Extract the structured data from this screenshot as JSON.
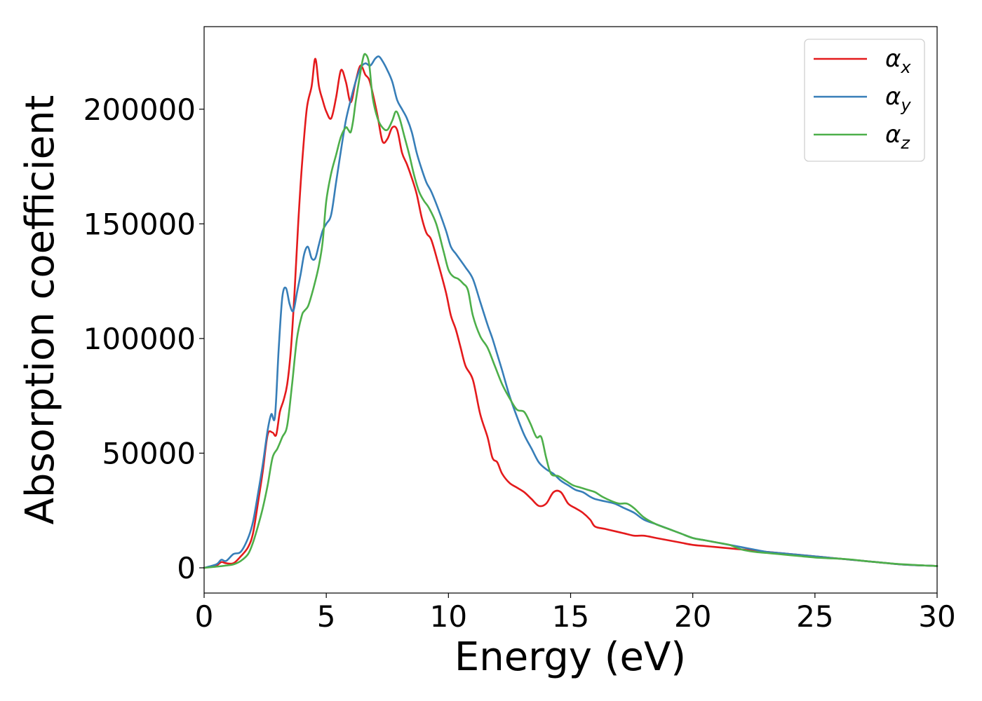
{
  "chart_data": {
    "type": "line",
    "title": "",
    "xlabel": "Energy (eV)",
    "ylabel": "Absorption coefficient",
    "xlim": [
      0,
      30
    ],
    "ylim": [
      -11000,
      236000
    ],
    "xticks": [
      0,
      5,
      10,
      15,
      20,
      25,
      30
    ],
    "yticks": [
      0,
      50000,
      100000,
      150000,
      200000
    ],
    "grid": false,
    "legend_position": "top-right",
    "series": [
      {
        "name": "αx",
        "legend_base": "α",
        "legend_sub": "x",
        "color": "#e41a1c",
        "x": [
          0,
          0.5,
          0.7,
          0.9,
          1.2,
          1.5,
          1.8,
          2.0,
          2.2,
          2.4,
          2.6,
          2.8,
          2.95,
          3.1,
          3.25,
          3.4,
          3.55,
          3.7,
          3.85,
          4.0,
          4.2,
          4.4,
          4.55,
          4.7,
          4.85,
          5.0,
          5.2,
          5.4,
          5.6,
          5.8,
          6.0,
          6.2,
          6.4,
          6.6,
          6.75,
          6.9,
          7.1,
          7.3,
          7.5,
          7.7,
          7.9,
          8.1,
          8.3,
          8.5,
          8.7,
          8.9,
          9.1,
          9.3,
          9.6,
          9.9,
          10.1,
          10.3,
          10.5,
          10.7,
          11.0,
          11.3,
          11.6,
          11.8,
          12.0,
          12.2,
          12.5,
          12.8,
          13.1,
          13.4,
          13.7,
          14.0,
          14.3,
          14.6,
          14.9,
          15.2,
          15.5,
          15.8,
          16.0,
          16.4,
          16.8,
          17.2,
          17.6,
          18.0,
          18.5,
          19.0,
          19.5,
          20.0,
          20.5,
          21.0,
          21.5,
          22.0,
          22.5,
          23.0,
          23.5,
          24.0,
          24.5,
          25.0,
          25.5,
          26.0,
          26.5,
          27.0,
          27.5,
          28.0,
          28.5,
          29.0,
          29.5,
          30.0
        ],
        "y": [
          0,
          1000,
          2500,
          2000,
          2000,
          5000,
          9000,
          15000,
          28000,
          42000,
          58000,
          59000,
          58000,
          68000,
          73000,
          80000,
          95000,
          120000,
          150000,
          175000,
          200000,
          210000,
          222000,
          210000,
          204000,
          199000,
          196000,
          205000,
          217000,
          212000,
          203000,
          212000,
          219000,
          215000,
          213000,
          207000,
          197000,
          186000,
          187000,
          192000,
          191000,
          181000,
          176000,
          170000,
          163000,
          153000,
          146000,
          143000,
          132000,
          120000,
          110000,
          104000,
          96000,
          88000,
          82000,
          67000,
          57000,
          48000,
          46000,
          41000,
          37000,
          35000,
          33000,
          30000,
          27000,
          28000,
          33000,
          33000,
          28000,
          26000,
          24000,
          21000,
          18000,
          17000,
          16000,
          15000,
          14000,
          14000,
          13000,
          12000,
          11000,
          10000,
          9500,
          9000,
          8500,
          8000,
          7500,
          7000,
          6500,
          6000,
          5500,
          5000,
          4500,
          4000,
          3500,
          3000,
          2500,
          2000,
          1500,
          1200,
          1000,
          800
        ]
      },
      {
        "name": "αy",
        "legend_base": "α",
        "legend_sub": "y",
        "color": "#377eb8",
        "x": [
          0,
          0.5,
          0.7,
          0.9,
          1.2,
          1.5,
          1.8,
          2.0,
          2.2,
          2.4,
          2.6,
          2.75,
          2.9,
          3.05,
          3.2,
          3.35,
          3.5,
          3.65,
          3.8,
          3.95,
          4.1,
          4.25,
          4.4,
          4.55,
          4.7,
          4.85,
          5.0,
          5.2,
          5.4,
          5.6,
          5.8,
          6.0,
          6.2,
          6.4,
          6.6,
          6.8,
          7.0,
          7.15,
          7.3,
          7.5,
          7.7,
          7.9,
          8.1,
          8.3,
          8.5,
          8.7,
          8.9,
          9.1,
          9.3,
          9.6,
          9.9,
          10.1,
          10.3,
          10.5,
          10.7,
          11.0,
          11.3,
          11.6,
          11.8,
          12.0,
          12.2,
          12.5,
          12.8,
          13.1,
          13.4,
          13.7,
          14.0,
          14.3,
          14.6,
          14.9,
          15.2,
          15.5,
          15.8,
          16.0,
          16.4,
          16.8,
          17.2,
          17.6,
          18.0,
          18.5,
          19.0,
          19.5,
          20.0,
          20.5,
          21.0,
          21.5,
          22.0,
          22.5,
          23.0,
          23.5,
          24.0,
          24.5,
          25.0,
          25.5,
          26.0,
          26.5,
          27.0,
          27.5,
          28.0,
          28.5,
          29.0,
          29.5,
          30.0
        ],
        "y": [
          0,
          1500,
          3500,
          3000,
          6000,
          7000,
          13000,
          20000,
          32000,
          45000,
          60000,
          67000,
          66000,
          95000,
          118000,
          122000,
          115000,
          112000,
          120000,
          128000,
          137000,
          140000,
          135000,
          135000,
          141000,
          147000,
          150000,
          154000,
          168000,
          182000,
          195000,
          204000,
          212000,
          218000,
          220000,
          219000,
          222000,
          223000,
          221000,
          217000,
          212000,
          204000,
          200000,
          196000,
          190000,
          181000,
          174000,
          168000,
          164000,
          156000,
          147000,
          140000,
          137000,
          134000,
          131000,
          126000,
          116000,
          106000,
          100000,
          93000,
          86000,
          75000,
          66000,
          58000,
          52000,
          46000,
          43000,
          41000,
          38000,
          36000,
          34000,
          33000,
          31000,
          30000,
          29000,
          28000,
          26000,
          24000,
          21000,
          19000,
          17000,
          15000,
          13000,
          12000,
          11000,
          10000,
          9000,
          8000,
          7000,
          6500,
          6000,
          5500,
          5000,
          4500,
          4000,
          3500,
          3000,
          2500,
          2000,
          1500,
          1200,
          1000,
          800
        ]
      },
      {
        "name": "αz",
        "legend_base": "α",
        "legend_sub": "z",
        "color": "#4daf4a",
        "x": [
          0,
          0.5,
          0.9,
          1.2,
          1.5,
          1.8,
          2.0,
          2.2,
          2.4,
          2.6,
          2.8,
          3.0,
          3.2,
          3.4,
          3.6,
          3.8,
          4.0,
          4.1,
          4.25,
          4.4,
          4.55,
          4.7,
          4.85,
          5.0,
          5.2,
          5.4,
          5.6,
          5.8,
          5.9,
          6.0,
          6.1,
          6.2,
          6.35,
          6.5,
          6.6,
          6.75,
          6.9,
          7.1,
          7.3,
          7.5,
          7.7,
          7.85,
          8.0,
          8.2,
          8.4,
          8.6,
          8.8,
          9.0,
          9.2,
          9.5,
          9.8,
          10.0,
          10.2,
          10.4,
          10.6,
          10.8,
          11.0,
          11.3,
          11.6,
          11.9,
          12.2,
          12.5,
          12.8,
          13.1,
          13.35,
          13.6,
          13.8,
          14.0,
          14.2,
          14.5,
          14.8,
          15.1,
          15.4,
          15.7,
          16.0,
          16.3,
          16.7,
          17.0,
          17.3,
          17.6,
          18.0,
          18.5,
          19.0,
          19.5,
          20.0,
          20.5,
          21.0,
          21.5,
          22.0,
          22.5,
          23.0,
          23.5,
          24.0,
          24.5,
          25.0,
          25.5,
          26.0,
          26.5,
          27.0,
          27.5,
          28.0,
          28.5,
          29.0,
          29.5,
          30.0
        ],
        "y": [
          0,
          500,
          1000,
          1500,
          3000,
          6000,
          11000,
          18000,
          26000,
          36000,
          48000,
          52000,
          57000,
          62000,
          80000,
          100000,
          110000,
          112000,
          114000,
          119000,
          125000,
          132000,
          142000,
          160000,
          172000,
          180000,
          188000,
          192000,
          191000,
          190000,
          195000,
          203000,
          213000,
          222000,
          224000,
          220000,
          205000,
          196000,
          192000,
          191000,
          195000,
          199000,
          196000,
          188000,
          180000,
          171000,
          164000,
          160000,
          157000,
          150000,
          138000,
          130000,
          127000,
          126000,
          124000,
          121000,
          110000,
          101000,
          96000,
          88000,
          80000,
          74000,
          69000,
          68000,
          63000,
          57000,
          57000,
          48000,
          41000,
          40000,
          38000,
          36000,
          35000,
          34000,
          33000,
          31000,
          29000,
          28000,
          28000,
          26000,
          22000,
          19000,
          17000,
          15000,
          13000,
          12000,
          11000,
          10000,
          8000,
          7000,
          6500,
          6000,
          5500,
          5000,
          4500,
          4200,
          4000,
          3600,
          3000,
          2500,
          2000,
          1600,
          1300,
          1000,
          800
        ]
      }
    ]
  }
}
